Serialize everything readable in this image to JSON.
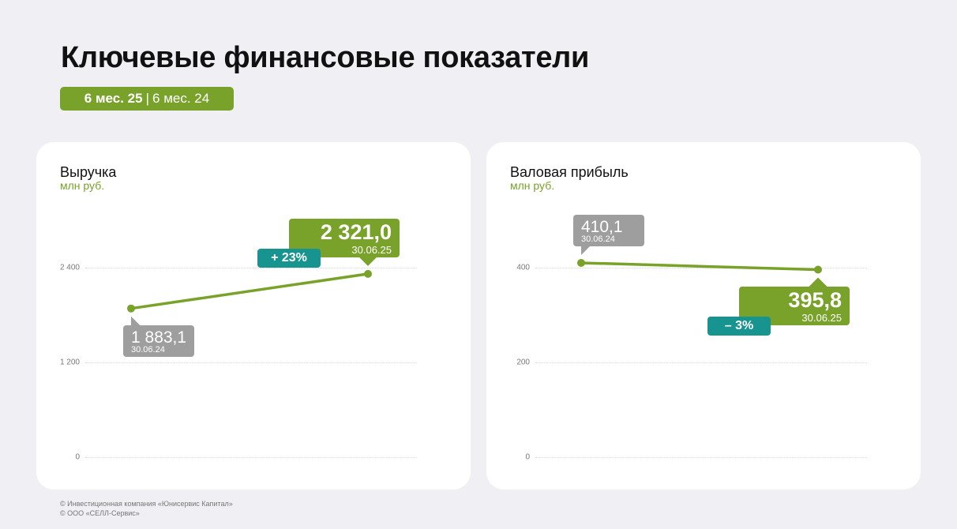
{
  "title": "Ключевые финансовые показатели",
  "period": {
    "current": "6 мес. 25",
    "separator": "|",
    "previous": "6 мес. 24"
  },
  "colors": {
    "accent": "#78a22a",
    "previous": "#9e9e9e",
    "change": "#17948f"
  },
  "chart_data": [
    {
      "type": "line",
      "title": "Выручка",
      "ylabel": "млн руб.",
      "ylim": [
        0,
        2400
      ],
      "yticks": [
        "0",
        "1 200",
        "2 400"
      ],
      "grid": true,
      "points": [
        {
          "value": 1883.1,
          "label": "1 883,1",
          "date": "30.06.24"
        },
        {
          "value": 2321.0,
          "label": "2 321,0",
          "date": "30.06.25"
        }
      ],
      "change": "+ 23%"
    },
    {
      "type": "line",
      "title": "Валовая прибыль",
      "ylabel": "млн руб.",
      "ylim": [
        0,
        400
      ],
      "yticks": [
        "0",
        "200",
        "400"
      ],
      "grid": true,
      "points": [
        {
          "value": 410.1,
          "label": "410,1",
          "date": "30.06.24"
        },
        {
          "value": 395.8,
          "label": "395,8",
          "date": "30.06.25"
        }
      ],
      "change": "– 3%"
    }
  ],
  "footer": [
    "© Инвестиционная компания «Юнисервис Капитал»",
    "© ООО «СЕЛЛ-Сервис»"
  ]
}
